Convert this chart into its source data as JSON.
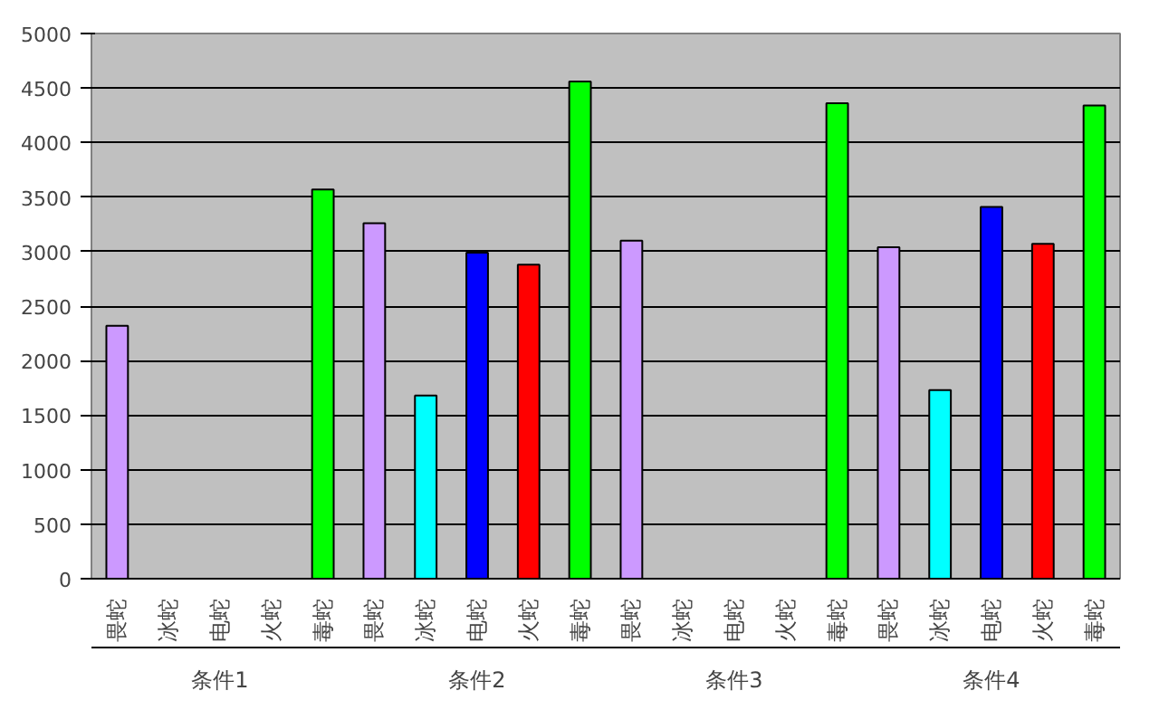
{
  "chart_data": {
    "type": "bar",
    "categories": [
      "畏蛇",
      "冰蛇",
      "电蛇",
      "火蛇",
      "毒蛇",
      "畏蛇",
      "冰蛇",
      "电蛇",
      "火蛇",
      "毒蛇",
      "畏蛇",
      "冰蛇",
      "电蛇",
      "火蛇",
      "毒蛇",
      "畏蛇",
      "冰蛇",
      "电蛇",
      "火蛇",
      "毒蛇"
    ],
    "values": [
      2320,
      null,
      null,
      null,
      3570,
      3260,
      1680,
      2990,
      2880,
      4560,
      3100,
      null,
      null,
      null,
      4360,
      3040,
      1730,
      3410,
      3070,
      4340
    ],
    "colors": [
      "#cc99ff",
      "#00ffff",
      "#0000ff",
      "#ff0000",
      "#00ff00",
      "#cc99ff",
      "#00ffff",
      "#0000ff",
      "#ff0000",
      "#00ff00",
      "#cc99ff",
      "#00ffff",
      "#0000ff",
      "#ff0000",
      "#00ff00",
      "#cc99ff",
      "#00ffff",
      "#0000ff",
      "#ff0000",
      "#00ff00"
    ],
    "annotations": [
      "条件1",
      "条件2",
      "条件3",
      "条件4"
    ],
    "ylim": [
      0,
      5000
    ],
    "yticks": [
      0,
      500,
      1000,
      1500,
      2000,
      2500,
      3000,
      3500,
      4000,
      4500,
      5000
    ],
    "grid": "y"
  }
}
